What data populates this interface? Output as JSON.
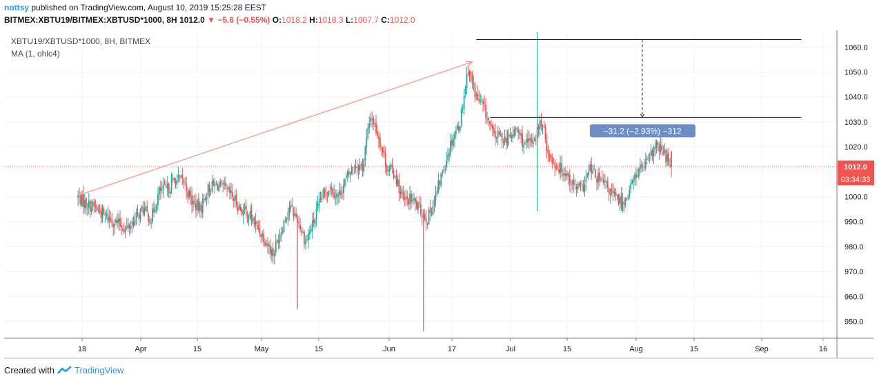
{
  "header": {
    "user": "nottsy",
    "published": "published on TradingView.com, August 10, 2019 15:25:28 EEST",
    "symbol": "BITMEX:XBTU19/BITMEX:XBTUSD*1000, 8H",
    "last": "1012.0",
    "change": "−5.6 (−0.55%)",
    "o_label": "O:",
    "o": "1018.2",
    "h_label": "H:",
    "h": "1018.3",
    "l_label": "L:",
    "l": "1007.7",
    "c_label": "C:",
    "c": "1012.0"
  },
  "legend": {
    "line1": "XBTU19/XBTUSD*1000, 8H, BITMEX",
    "line2": "MA (1, ohlc4)"
  },
  "price_label": "1012.0",
  "countdown": "03:34:33",
  "measure_label": "−31.2 (−2.93%) −312",
  "footer": {
    "created": "Created with",
    "brand": "TradingView"
  },
  "colors": {
    "up": "#26a69a",
    "down": "#ef5350",
    "price_line": "#ef5350",
    "measure": "#6c8ec4",
    "trend": "#f4a6a3"
  },
  "chart_data": {
    "type": "candlestick",
    "title": "XBTU19/XBTUSD*1000, 8H, BITMEX",
    "x_ticks": [
      "18",
      "Apr",
      "15",
      "May",
      "15",
      "Jun",
      "17",
      "Jul",
      "15",
      "Aug",
      "15",
      "Sep",
      "16"
    ],
    "y_ticks": [
      950,
      960,
      970,
      980,
      990,
      1000,
      1010,
      1020,
      1030,
      1040,
      1050,
      1060
    ],
    "ylim": [
      944,
      1066
    ],
    "last_value": 1012.0,
    "start_date": "2019-03-17",
    "series_close": [
      [
        "2019-03-17",
        1000
      ],
      [
        "2019-03-19",
        997
      ],
      [
        "2019-03-21",
        996
      ],
      [
        "2019-03-23",
        993
      ],
      [
        "2019-03-25",
        991
      ],
      [
        "2019-03-27",
        989
      ],
      [
        "2019-03-29",
        987
      ],
      [
        "2019-03-31",
        991
      ],
      [
        "2019-04-02",
        995
      ],
      [
        "2019-04-04",
        991
      ],
      [
        "2019-04-06",
        1002
      ],
      [
        "2019-04-08",
        1003
      ],
      [
        "2019-04-10",
        1007
      ],
      [
        "2019-04-12",
        1006
      ],
      [
        "2019-04-14",
        998
      ],
      [
        "2019-04-16",
        995
      ],
      [
        "2019-04-18",
        1003
      ],
      [
        "2019-04-20",
        1005
      ],
      [
        "2019-04-22",
        1003
      ],
      [
        "2019-04-24",
        1000
      ],
      [
        "2019-04-26",
        995
      ],
      [
        "2019-04-28",
        993
      ],
      [
        "2019-04-30",
        988
      ],
      [
        "2019-05-02",
        983
      ],
      [
        "2019-05-04",
        977
      ],
      [
        "2019-05-06",
        987
      ],
      [
        "2019-05-08",
        996
      ],
      [
        "2019-05-10",
        991
      ],
      [
        "2019-05-12",
        982
      ],
      [
        "2019-05-14",
        990
      ],
      [
        "2019-05-16",
        1000
      ],
      [
        "2019-05-18",
        1004
      ],
      [
        "2019-05-20",
        1000
      ],
      [
        "2019-05-22",
        1007
      ],
      [
        "2019-05-24",
        1013
      ],
      [
        "2019-05-26",
        1012
      ],
      [
        "2019-05-28",
        1033
      ],
      [
        "2019-05-30",
        1024
      ],
      [
        "2019-06-01",
        1012
      ],
      [
        "2019-06-03",
        1009
      ],
      [
        "2019-06-05",
        998
      ],
      [
        "2019-06-07",
        999
      ],
      [
        "2019-06-09",
        995
      ],
      [
        "2019-06-11",
        991
      ],
      [
        "2019-06-13",
        1000
      ],
      [
        "2019-06-15",
        1012
      ],
      [
        "2019-06-17",
        1023
      ],
      [
        "2019-06-19",
        1030
      ],
      [
        "2019-06-21",
        1052
      ],
      [
        "2019-06-23",
        1040
      ],
      [
        "2019-06-25",
        1035
      ],
      [
        "2019-06-27",
        1025
      ],
      [
        "2019-06-29",
        1024
      ],
      [
        "2019-07-01",
        1023
      ],
      [
        "2019-07-03",
        1027
      ],
      [
        "2019-07-05",
        1020
      ],
      [
        "2019-07-07",
        1023
      ],
      [
        "2019-07-09",
        1030
      ],
      [
        "2019-07-11",
        1016
      ],
      [
        "2019-07-13",
        1012
      ],
      [
        "2019-07-15",
        1010
      ],
      [
        "2019-07-17",
        1004
      ],
      [
        "2019-07-19",
        1003
      ],
      [
        "2019-07-21",
        1011
      ],
      [
        "2019-07-23",
        1007
      ],
      [
        "2019-07-25",
        1004
      ],
      [
        "2019-07-27",
        1000
      ],
      [
        "2019-07-29",
        997
      ],
      [
        "2019-07-31",
        1004
      ],
      [
        "2019-08-02",
        1011
      ],
      [
        "2019-08-04",
        1013
      ],
      [
        "2019-08-06",
        1020
      ],
      [
        "2019-08-08",
        1018
      ],
      [
        "2019-08-10",
        1012
      ]
    ],
    "annotations": {
      "trend_line": {
        "from": [
          "2019-03-17",
          1000.5
        ],
        "to": [
          "2019-06-22",
          1054
        ]
      },
      "measure": {
        "top": 1063,
        "bottom": 1031.8,
        "x_from": "2019-06-23",
        "x_to": "2019-09-11",
        "label": "−31.2 (−2.93%) −312"
      },
      "spikes": [
        {
          "date": "2019-05-10",
          "low": 955
        },
        {
          "date": "2019-06-10",
          "low": 946
        },
        {
          "date": "2019-07-08",
          "high": 1066,
          "low": 994
        }
      ]
    }
  }
}
